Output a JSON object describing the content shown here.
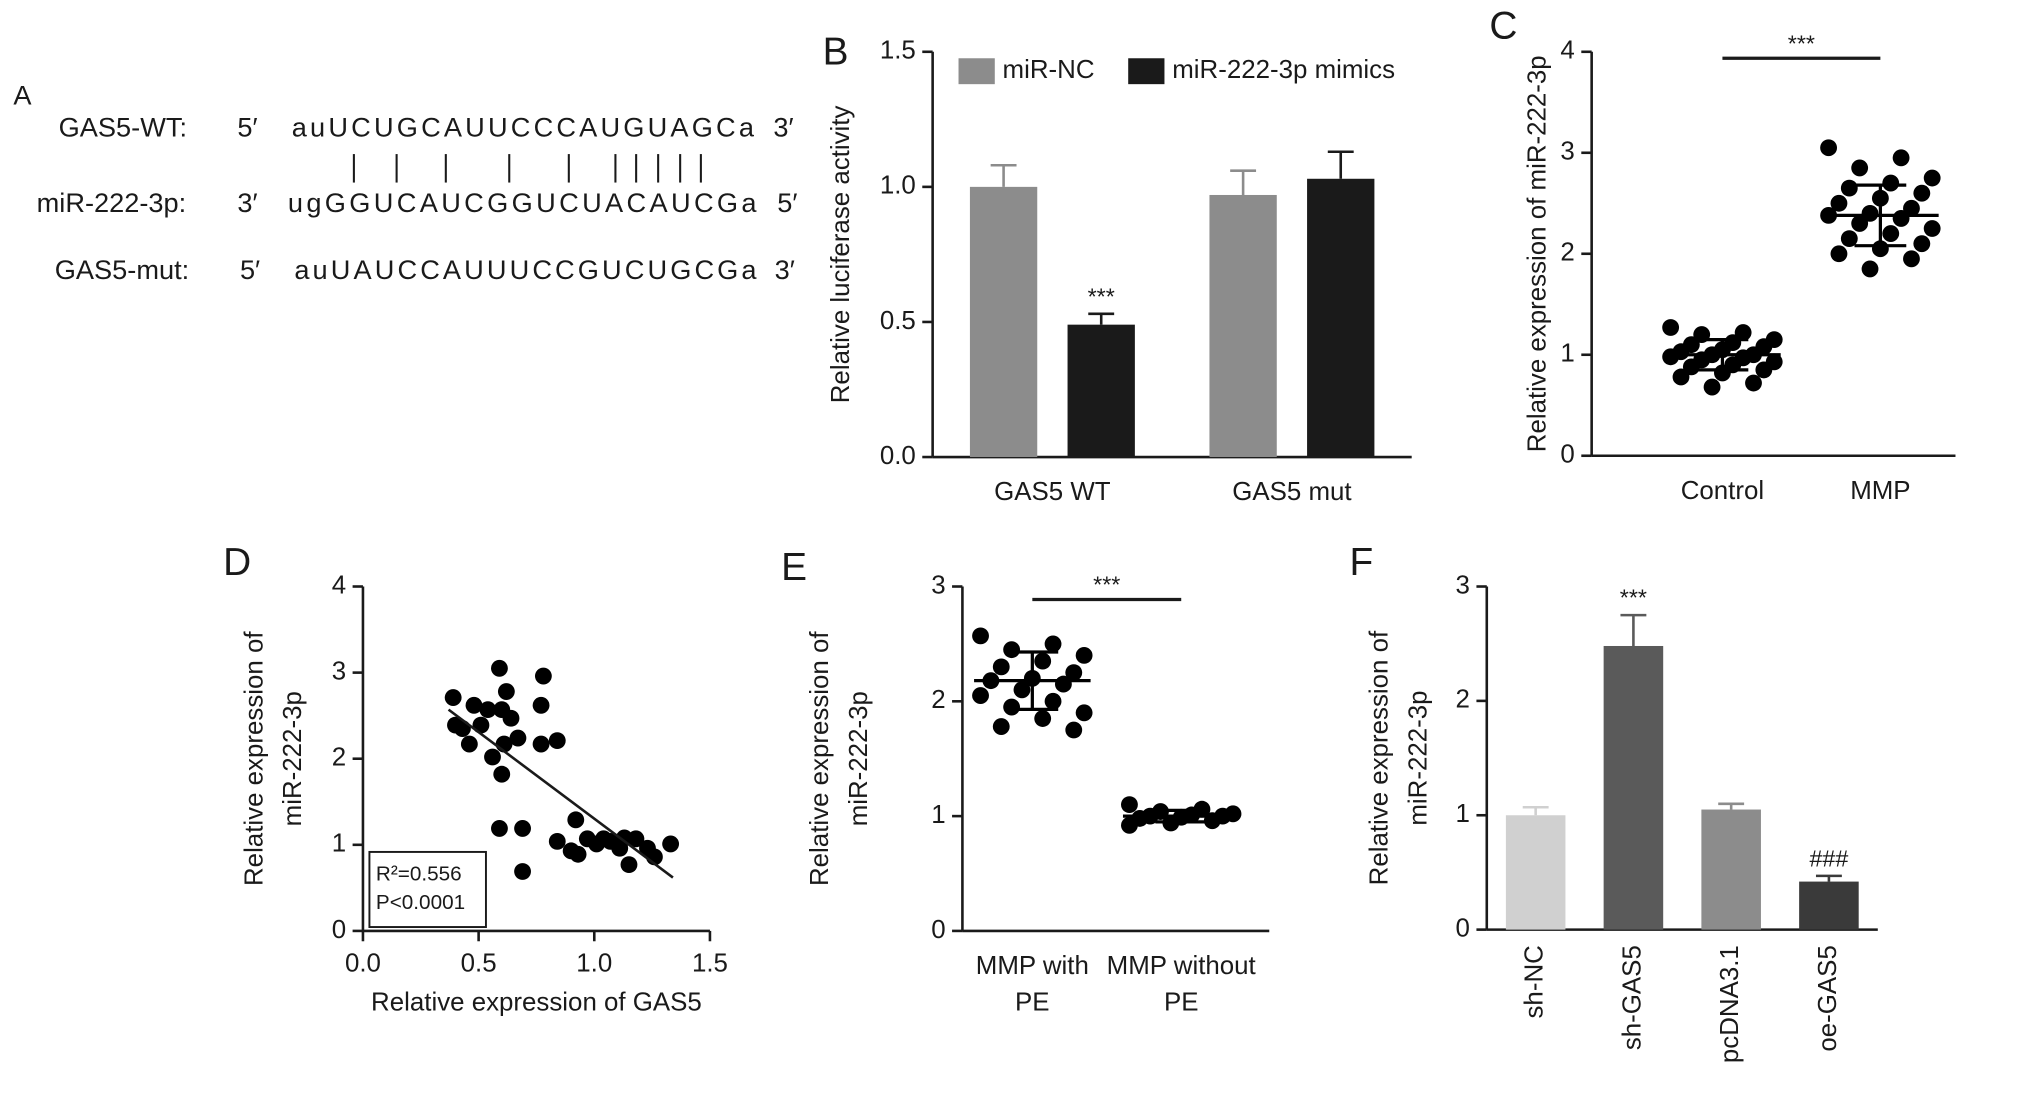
{
  "sequence_alignment": {
    "panel": "A",
    "rows": [
      {
        "label": "GAS5-WT:",
        "start": "5′",
        "sequence": "auUCUGCAUUCCCAUGUAGCa",
        "end": "3′"
      },
      {
        "label": "miR-222-3p:",
        "start": "3′",
        "sequence": "ugGGUCAUCGGUCUACAUCGa",
        "end": "5′"
      },
      {
        "label": "GAS5-mut:",
        "start": "5′",
        "sequence": "auUAUCCAUUUCCGUCUGCGa",
        "end": "3′"
      }
    ]
  },
  "chart_data": [
    {
      "type": "bar",
      "panel": "B",
      "ylabel": "Relative luciferase activity",
      "categories": [
        "GAS5 WT",
        "GAS5 mut"
      ],
      "series": [
        {
          "name": "miR-NC",
          "color": "#8c8c8c",
          "values": [
            1.0,
            0.97
          ],
          "errors": [
            0.08,
            0.09
          ]
        },
        {
          "name": "miR-222-3p mimics",
          "color": "#1a1a1a",
          "values": [
            0.49,
            1.03
          ],
          "errors": [
            0.04,
            0.1
          ],
          "significance": [
            "***",
            null
          ]
        }
      ],
      "ylim": [
        0,
        1.5
      ],
      "yticks": [
        {
          "value": 0,
          "label": "0.0"
        },
        0.5,
        {
          "value": 1,
          "label": "1.0"
        },
        1.5
      ],
      "legend": "top"
    },
    {
      "type": "dotplot",
      "panel": "C",
      "ylabel": "Relative expression of miR-222-3p",
      "categories": [
        "Control",
        "MMP"
      ],
      "groups": [
        [
          1.27,
          1.22,
          1.2,
          1.15,
          1.12,
          1.1,
          1.08,
          1.05,
          1.03,
          1.0,
          1.0,
          0.98,
          0.97,
          0.95,
          0.93,
          0.9,
          0.88,
          0.85,
          0.82,
          0.78,
          0.72,
          0.68
        ],
        [
          3.05,
          2.95,
          2.85,
          2.75,
          2.7,
          2.65,
          2.6,
          2.55,
          2.5,
          2.45,
          2.4,
          2.38,
          2.35,
          2.3,
          2.25,
          2.2,
          2.15,
          2.1,
          2.05,
          2.0,
          1.95,
          1.85
        ]
      ],
      "means": [
        1.0,
        2.38
      ],
      "sds": [
        0.15,
        0.3
      ],
      "color": "#000000",
      "ylim": [
        0,
        4
      ],
      "yticks": [
        0,
        1,
        2,
        3,
        4
      ],
      "significance": "***"
    },
    {
      "type": "scatter",
      "panel": "D",
      "xlabel": "Relative expression of GAS5",
      "ylabel": [
        "Relative expression of",
        "miR-222-3p"
      ],
      "x": [
        0.39,
        0.4,
        0.43,
        0.46,
        0.48,
        0.51,
        0.54,
        0.56,
        0.59,
        0.6,
        0.61,
        0.62,
        0.6,
        0.64,
        0.67,
        0.59,
        0.69,
        0.69,
        0.78,
        0.77,
        0.84,
        0.77,
        0.84,
        0.9,
        0.92,
        0.93,
        0.97,
        1.01,
        1.04,
        1.07,
        1.11,
        1.13,
        1.15,
        1.18,
        1.23,
        1.26,
        1.33
      ],
      "y": [
        2.71,
        2.39,
        2.35,
        2.17,
        2.62,
        2.39,
        2.57,
        2.02,
        3.05,
        2.57,
        2.17,
        2.78,
        1.82,
        2.47,
        2.24,
        1.19,
        1.19,
        0.69,
        2.96,
        2.17,
        2.21,
        2.62,
        1.04,
        0.93,
        1.29,
        0.89,
        1.07,
        1.01,
        1.07,
        1.04,
        0.96,
        1.08,
        0.77,
        1.07,
        0.96,
        0.86,
        1.01
      ],
      "fit": {
        "x": [
          0.37,
          1.34
        ],
        "y": [
          2.57,
          0.62
        ]
      },
      "stats": [
        "R²=0.556",
        "P<0.0001"
      ],
      "legend": "lower left",
      "color": "#000000",
      "xlim": [
        0,
        1.5
      ],
      "xticks": [
        {
          "value": 0,
          "label": "0.0"
        },
        0.5,
        {
          "value": 1,
          "label": "1.0"
        },
        1.5
      ],
      "ylim": [
        0,
        4
      ],
      "yticks": [
        0,
        1,
        2,
        3,
        4
      ]
    },
    {
      "type": "dotplot",
      "panel": "E",
      "ylabel": [
        "Relative expression of",
        "miR-222-3p"
      ],
      "categories": [
        [
          "MMP with",
          "PE"
        ],
        [
          "MMP without",
          "PE"
        ]
      ],
      "groups": [
        [
          2.57,
          2.5,
          2.45,
          2.4,
          2.35,
          2.3,
          2.25,
          2.2,
          2.18,
          2.15,
          2.1,
          2.05,
          2.0,
          1.95,
          1.9,
          1.85,
          1.78,
          1.75
        ],
        [
          1.1,
          1.06,
          1.04,
          1.02,
          1.01,
          1.0,
          1.0,
          0.99,
          0.98,
          0.96,
          0.94,
          0.92
        ]
      ],
      "means": [
        2.18,
        1.0
      ],
      "sds": [
        0.25,
        0.05
      ],
      "color": "#000000",
      "ylim": [
        0,
        3
      ],
      "yticks": [
        0,
        1,
        2,
        3
      ],
      "significance": "***"
    },
    {
      "type": "bar",
      "panel": "F",
      "ylabel": [
        "Relative expression of",
        "miR-222-3p"
      ],
      "categories": [
        "sh-NC",
        "sh-GAS5",
        "pcDNA3.1",
        "oe-GAS5"
      ],
      "values": [
        1.0,
        2.48,
        1.05,
        0.42
      ],
      "errors": [
        0.07,
        0.27,
        0.05,
        0.05
      ],
      "colors": [
        "#d0d0d0",
        "#5a5a5a",
        "#8c8c8c",
        "#3a3a3a"
      ],
      "significance": [
        null,
        "***",
        null,
        "###"
      ],
      "ylim": [
        0,
        3
      ],
      "yticks": [
        0,
        1,
        2,
        3
      ],
      "rotate_labels": true
    }
  ]
}
